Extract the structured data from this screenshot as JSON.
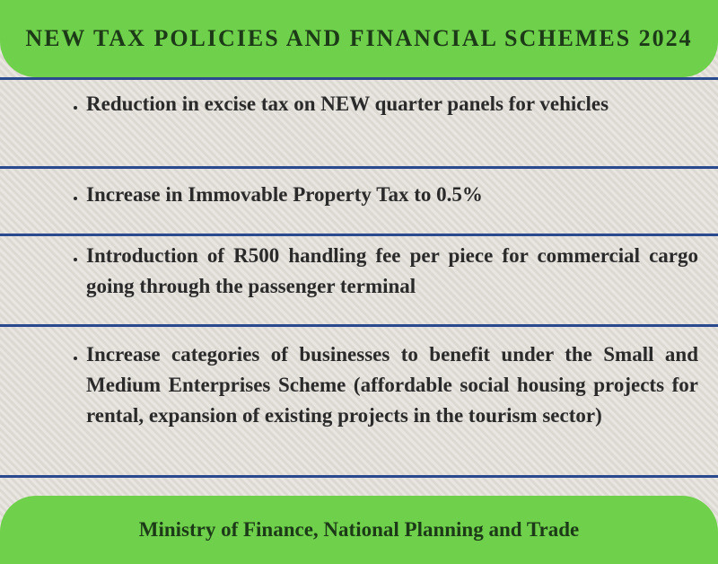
{
  "header": {
    "title": "NEW TAX POLICIES AND FINANCIAL SCHEMES 2024"
  },
  "items": [
    "Reduction in excise tax on NEW quarter panels for vehicles",
    "Increase in Immovable Property Tax to 0.5%",
    "Introduction of R500 handling fee per piece for commercial cargo going through the passenger terminal",
    "Increase categories of businesses to benefit under the Small and Medium Enterprises Scheme (affordable social housing projects for rental, expansion of existing projects in the tourism sector)"
  ],
  "footer": {
    "text": "Ministry of Finance, National Planning and Trade"
  }
}
